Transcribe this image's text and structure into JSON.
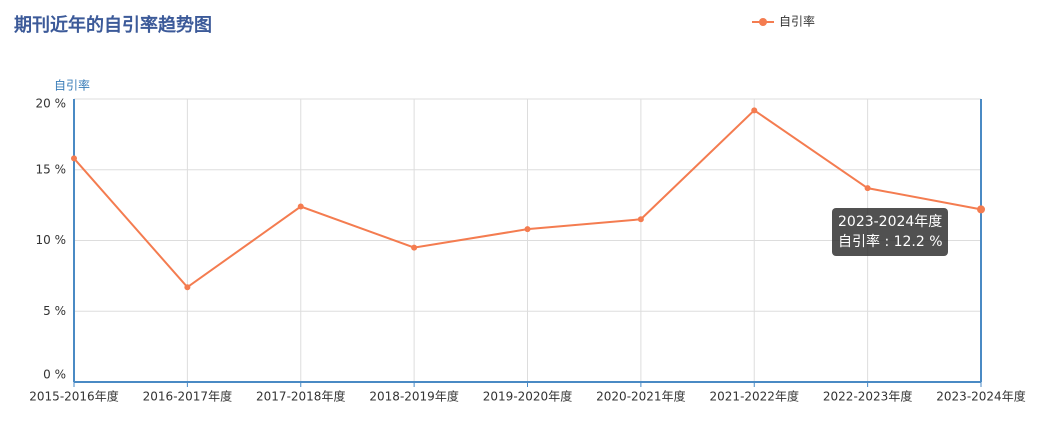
{
  "chart_data": {
    "type": "line",
    "title": "期刊近年的自引率趋势图",
    "y_label": "自引率",
    "categories": [
      "2015-2016年度",
      "2016-2017年度",
      "2017-2018年度",
      "2018-2019年度",
      "2019-2020年度",
      "2020-2021年度",
      "2021-2022年度",
      "2022-2023年度",
      "2023-2024年度"
    ],
    "series": [
      {
        "name": "自引率",
        "color": "#f47c50",
        "values": [
          15.8,
          6.7,
          12.4,
          9.5,
          10.8,
          11.5,
          19.2,
          13.7,
          12.2
        ]
      }
    ],
    "ylim": [
      0,
      20
    ],
    "yticks": [
      {
        "value": 0,
        "label": "0 %"
      },
      {
        "value": 5,
        "label": "5 %"
      },
      {
        "value": 10,
        "label": "10 %"
      },
      {
        "value": 15,
        "label": "15 %"
      },
      {
        "value": 20,
        "label": "20 %"
      }
    ],
    "grid": true,
    "legend": "top-right",
    "tooltip": {
      "title": "2023-2024年度",
      "label": "自引率 : 12.2 %"
    }
  }
}
